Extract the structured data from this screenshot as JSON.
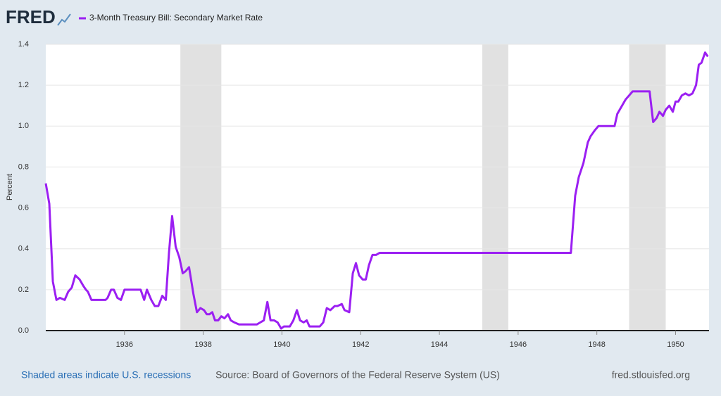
{
  "chart_data": {
    "type": "line",
    "logo": "FRED",
    "y_label": "Percent",
    "recession_note": "Shaded areas indicate U.S. recessions",
    "source": "Source: Board of Governors of the Federal Reserve System (US)",
    "site": "fred.stlouisfed.org",
    "xlim": [
      1934.0,
      1950.85
    ],
    "ylim": [
      0,
      1.4
    ],
    "xticks": [
      1936,
      1938,
      1940,
      1942,
      1944,
      1946,
      1948,
      1950
    ],
    "yticks": [
      {
        "value": 0,
        "label": "0.0"
      },
      0.2,
      0.4,
      0.6,
      0.8,
      {
        "value": 1,
        "label": "1.0"
      },
      1.2,
      1.4
    ],
    "grid": true,
    "recessions": [
      [
        1937.42,
        1938.46
      ],
      [
        1945.09,
        1945.75
      ],
      [
        1948.82,
        1949.75
      ]
    ],
    "recession_color": "#e1e1e1",
    "series": [
      {
        "name": "3-Month Treasury Bill: Secondary Market Rate",
        "color": "#9b1ff2",
        "x": [
          1934.0,
          1934.09,
          1934.18,
          1934.27,
          1934.36,
          1934.48,
          1934.57,
          1934.66,
          1934.75,
          1934.86,
          1934.95,
          1935.02,
          1935.07,
          1935.16,
          1935.52,
          1935.57,
          1935.66,
          1935.73,
          1935.82,
          1935.91,
          1936.0,
          1936.41,
          1936.5,
          1936.57,
          1936.68,
          1936.77,
          1936.86,
          1936.96,
          1937.05,
          1937.13,
          1937.21,
          1937.3,
          1937.39,
          1937.48,
          1937.55,
          1937.64,
          1937.75,
          1937.84,
          1937.93,
          1938.02,
          1938.09,
          1938.16,
          1938.23,
          1938.3,
          1938.38,
          1938.46,
          1938.54,
          1938.63,
          1938.7,
          1938.79,
          1938.91,
          1939.36,
          1939.45,
          1939.54,
          1939.63,
          1939.71,
          1939.8,
          1939.89,
          1939.98,
          1940.05,
          1940.2,
          1940.29,
          1940.38,
          1940.46,
          1940.55,
          1940.63,
          1940.7,
          1940.96,
          1941.05,
          1941.14,
          1941.23,
          1941.34,
          1941.41,
          1941.52,
          1941.59,
          1941.71,
          1941.8,
          1941.88,
          1941.96,
          1942.05,
          1942.13,
          1942.21,
          1942.3,
          1942.39,
          1942.48,
          1947.34,
          1947.45,
          1947.54,
          1947.66,
          1947.77,
          1947.84,
          1947.95,
          1948.04,
          1948.45,
          1948.52,
          1948.64,
          1948.73,
          1948.82,
          1948.91,
          1949.34,
          1949.43,
          1949.52,
          1949.59,
          1949.68,
          1949.75,
          1949.84,
          1949.93,
          1950.0,
          1950.07,
          1950.16,
          1950.25,
          1950.34,
          1950.43,
          1950.52,
          1950.59,
          1950.66,
          1950.75,
          1950.82
        ],
        "values": [
          0.72,
          0.62,
          0.24,
          0.15,
          0.16,
          0.15,
          0.19,
          0.21,
          0.27,
          0.25,
          0.22,
          0.2,
          0.19,
          0.15,
          0.15,
          0.16,
          0.2,
          0.2,
          0.16,
          0.15,
          0.2,
          0.2,
          0.15,
          0.2,
          0.15,
          0.12,
          0.12,
          0.17,
          0.15,
          0.38,
          0.56,
          0.41,
          0.36,
          0.28,
          0.29,
          0.31,
          0.18,
          0.09,
          0.11,
          0.1,
          0.08,
          0.08,
          0.09,
          0.05,
          0.05,
          0.07,
          0.06,
          0.08,
          0.05,
          0.04,
          0.03,
          0.03,
          0.04,
          0.05,
          0.14,
          0.05,
          0.05,
          0.04,
          0.01,
          0.02,
          0.02,
          0.05,
          0.1,
          0.05,
          0.04,
          0.05,
          0.02,
          0.02,
          0.04,
          0.11,
          0.1,
          0.12,
          0.12,
          0.13,
          0.1,
          0.09,
          0.28,
          0.33,
          0.27,
          0.25,
          0.25,
          0.32,
          0.37,
          0.37,
          0.38,
          0.38,
          0.66,
          0.75,
          0.82,
          0.92,
          0.95,
          0.98,
          1.0,
          1.0,
          1.06,
          1.1,
          1.13,
          1.15,
          1.17,
          1.17,
          1.02,
          1.04,
          1.07,
          1.05,
          1.08,
          1.1,
          1.07,
          1.12,
          1.12,
          1.15,
          1.16,
          1.15,
          1.16,
          1.2,
          1.3,
          1.31,
          1.36,
          1.34
        ]
      }
    ]
  }
}
